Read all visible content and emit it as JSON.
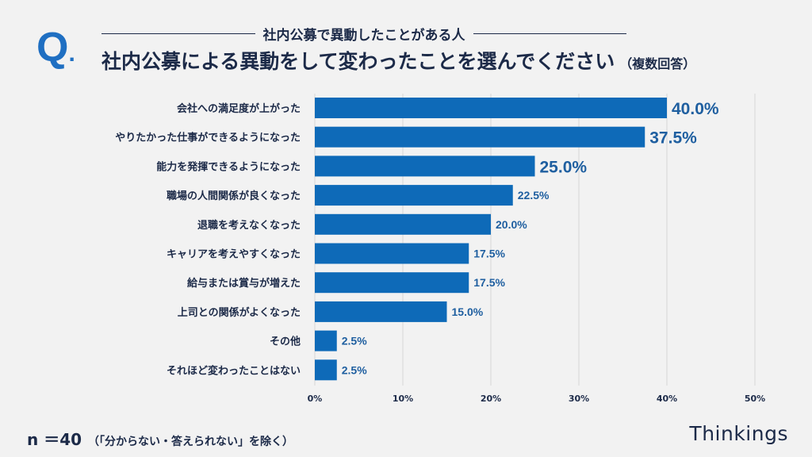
{
  "header": {
    "q_mark": "Q",
    "q_dot": ".",
    "subtitle": "社内公募で異動したことがある人",
    "title": "社内公募による異動をして変わったことを選んでください",
    "title_note": "（複数回答）"
  },
  "footer": {
    "n_label": "n ＝40",
    "n_note": "（「分からない・答えられない」を除く）",
    "brand": "Thinkings"
  },
  "colors": {
    "bar": "#0e6ab8",
    "text": "#1c2a48",
    "accent": "#1f6fc2",
    "grid": "#d6d6d6"
  },
  "chart_data": {
    "type": "bar",
    "orientation": "horizontal",
    "categories": [
      "会社への満足度が上がった",
      "やりたかった仕事ができるようになった",
      "能力を発揮できるようになった",
      "職場の人間関係が良くなった",
      "退職を考えなくなった",
      "キャリアを考えやすくなった",
      "給与または賞与が増えた",
      "上司との関係がよくなった",
      "その他",
      "それほど変わったことはない"
    ],
    "values": [
      40.0,
      37.5,
      25.0,
      22.5,
      20.0,
      17.5,
      17.5,
      15.0,
      2.5,
      2.5
    ],
    "value_labels": [
      "40.0%",
      "37.5%",
      "25.0%",
      "22.5%",
      "20.0%",
      "17.5%",
      "17.5%",
      "15.0%",
      "2.5%",
      "2.5%"
    ],
    "xlim": [
      0,
      50
    ],
    "xticks": [
      "0%",
      "10%",
      "20%",
      "30%",
      "40%",
      "50%"
    ],
    "grid": true,
    "unit": "%"
  }
}
